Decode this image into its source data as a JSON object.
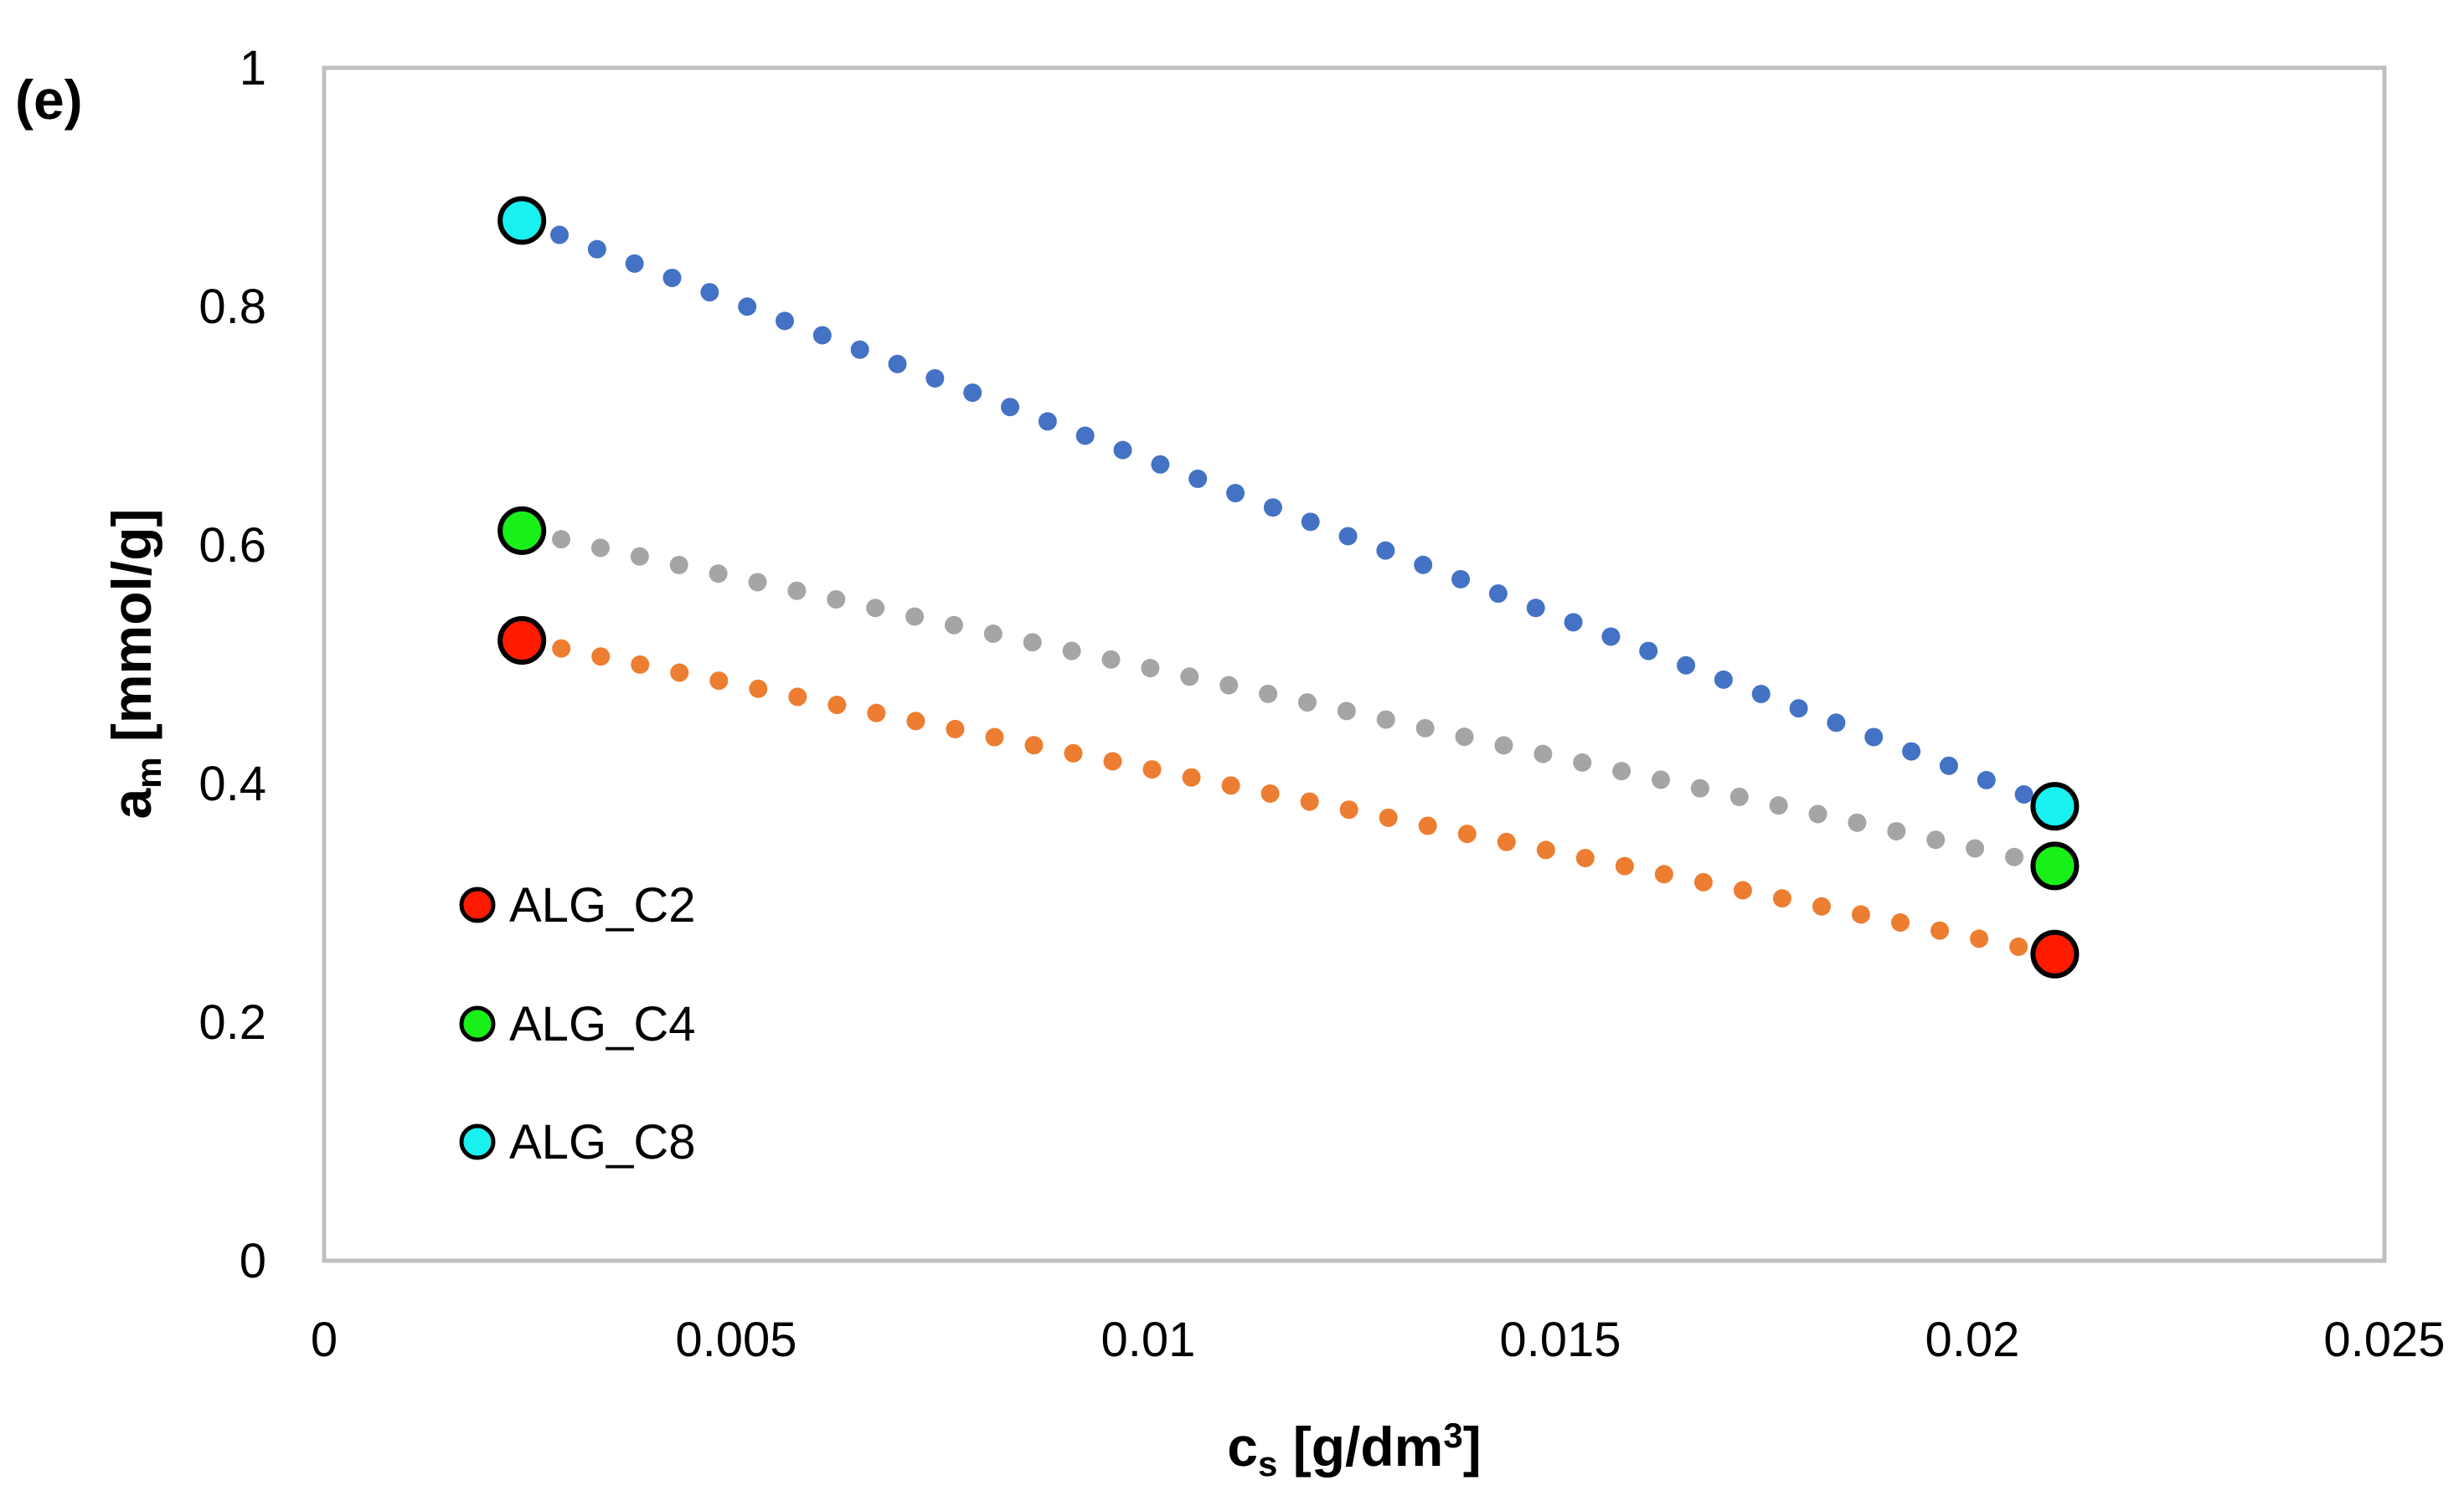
{
  "chart_data": {
    "type": "scatter",
    "panel_label": "(e)",
    "xlabel_main": "c",
    "xlabel_sub": "s",
    "xlabel_rest": " [g/dm",
    "xlabel_sup": "3",
    "xlabel_end": "]",
    "ylabel_main": "a",
    "ylabel_sub": "m",
    "ylabel_rest": " [mmol/g]",
    "xlim": [
      0,
      0.025
    ],
    "ylim": [
      0,
      1
    ],
    "x_ticks": [
      0,
      0.005,
      0.01,
      0.015,
      0.02,
      0.025
    ],
    "x_tick_labels": [
      "0",
      "0.005",
      "0.01",
      "0.015",
      "0.02",
      "0.025"
    ],
    "y_ticks": [
      0,
      0.2,
      0.4,
      0.6,
      0.8,
      1
    ],
    "y_tick_labels": [
      "0",
      "0.2",
      "0.4",
      "0.6",
      "0.8",
      "1"
    ],
    "grid": false,
    "legend_position": "lower-left",
    "series": [
      {
        "name": "ALG_C2",
        "marker_color": "#ff1a00",
        "trend_color": "#ed7d31",
        "x": [
          0.0024,
          0.021
        ],
        "y": [
          0.52,
          0.257
        ]
      },
      {
        "name": "ALG_C4",
        "marker_color": "#19f019",
        "trend_color": "#a5a5a5",
        "x": [
          0.0024,
          0.021
        ],
        "y": [
          0.612,
          0.331
        ]
      },
      {
        "name": "ALG_C8",
        "marker_color": "#19f0f0",
        "trend_color": "#4472c4",
        "x": [
          0.0024,
          0.021
        ],
        "y": [
          0.872,
          0.381
        ]
      }
    ]
  }
}
